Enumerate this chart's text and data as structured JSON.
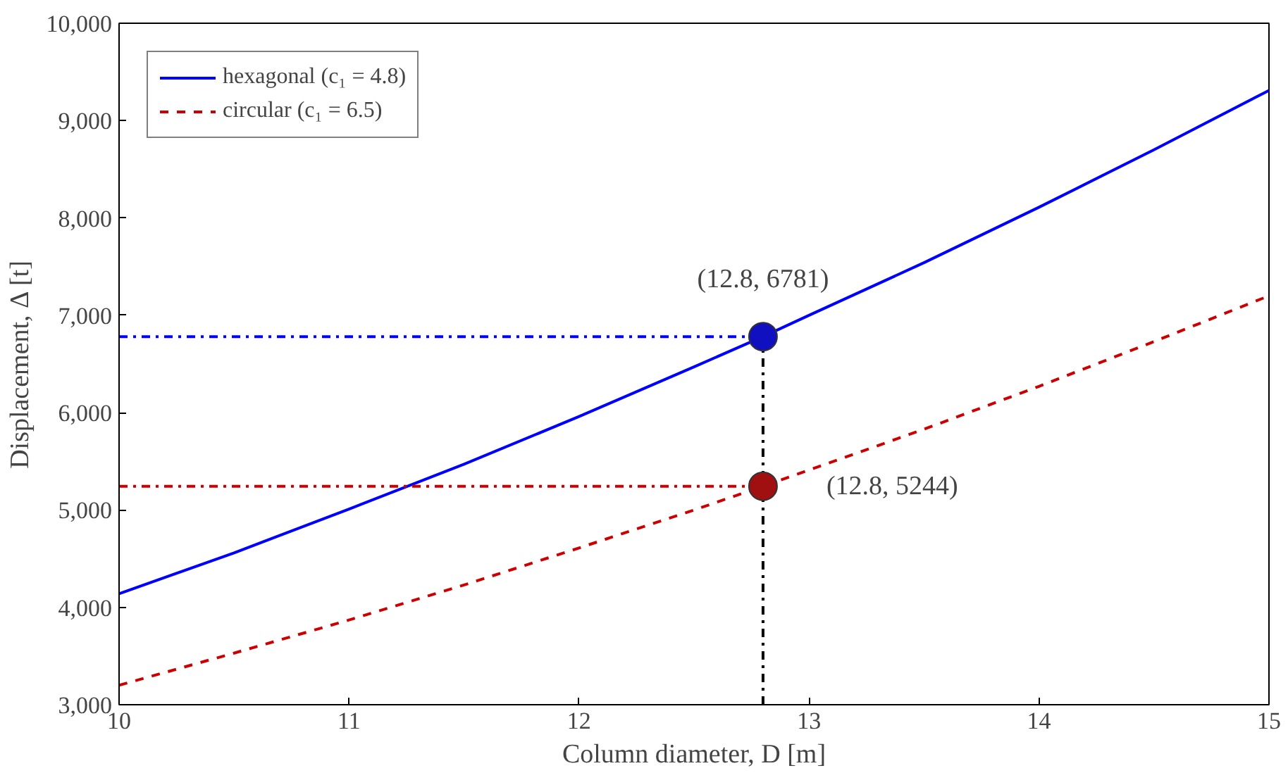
{
  "chart_data": {
    "type": "line",
    "xlabel": "Column diameter, D [m]",
    "ylabel": "Displacement, Δ [t]",
    "xlim": [
      10,
      15
    ],
    "ylim": [
      3000,
      10000
    ],
    "xticks": [
      10,
      11,
      12,
      13,
      14,
      15
    ],
    "yticks": [
      {
        "value": 3000,
        "label": "3,000"
      },
      {
        "value": 4000,
        "label": "4,000"
      },
      {
        "value": 5000,
        "label": "5,000"
      },
      {
        "value": 6000,
        "label": "6,000"
      },
      {
        "value": 7000,
        "label": "7,000"
      },
      {
        "value": 8000,
        "label": "8,000"
      },
      {
        "value": 9000,
        "label": "9,000"
      },
      {
        "value": 10000,
        "label": "10,000"
      }
    ],
    "grid": false,
    "legend": "top left",
    "marker": "none",
    "series": [
      {
        "name": "hexagonal (c₁ = 4.8)",
        "color": "#0000ff",
        "line_style": "solid",
        "x": [
          10,
          10.5,
          11,
          11.5,
          12,
          12.5,
          12.8,
          13,
          13.5,
          14,
          14.5,
          15
        ],
        "values": [
          4140,
          4560,
          5010,
          5470,
          5960,
          6470,
          6781,
          7000,
          7540,
          8110,
          8700,
          9310
        ]
      },
      {
        "name": "circular (c₁ = 6.5)",
        "color": "#cc0000",
        "line_style": "dashed",
        "x": [
          10,
          10.5,
          11,
          11.5,
          12,
          12.5,
          12.8,
          13,
          13.5,
          14,
          14.5,
          15
        ],
        "values": [
          3200,
          3530,
          3870,
          4230,
          4610,
          5000,
          5244,
          5410,
          5830,
          6270,
          6730,
          7200
        ]
      },
      {
        "color": "#0000ff",
        "line_style": "dashdot",
        "x": [
          10,
          12.8
        ],
        "values": [
          6781,
          6781
        ]
      },
      {
        "color": "#cc0000",
        "line_style": "dashdot",
        "x": [
          10,
          12.8
        ],
        "values": [
          5244,
          5244
        ]
      },
      {
        "color": "#000000",
        "line_style": "dashdot",
        "x": [
          12.8,
          12.8
        ],
        "values": [
          3000,
          6781
        ]
      },
      {
        "type": "scatter",
        "marker": "circle",
        "color": "#1010c0",
        "x": [
          12.8
        ],
        "values": [
          6781
        ]
      },
      {
        "type": "scatter",
        "marker": "circle",
        "color": "#a01010",
        "x": [
          12.8
        ],
        "values": [
          5244
        ]
      }
    ],
    "annotations": [
      {
        "text": "(12.8, 6781)",
        "x": 12.8,
        "y": 6781
      },
      {
        "text": "(12.8, 5244)",
        "x": 12.8,
        "y": 5244
      }
    ]
  }
}
